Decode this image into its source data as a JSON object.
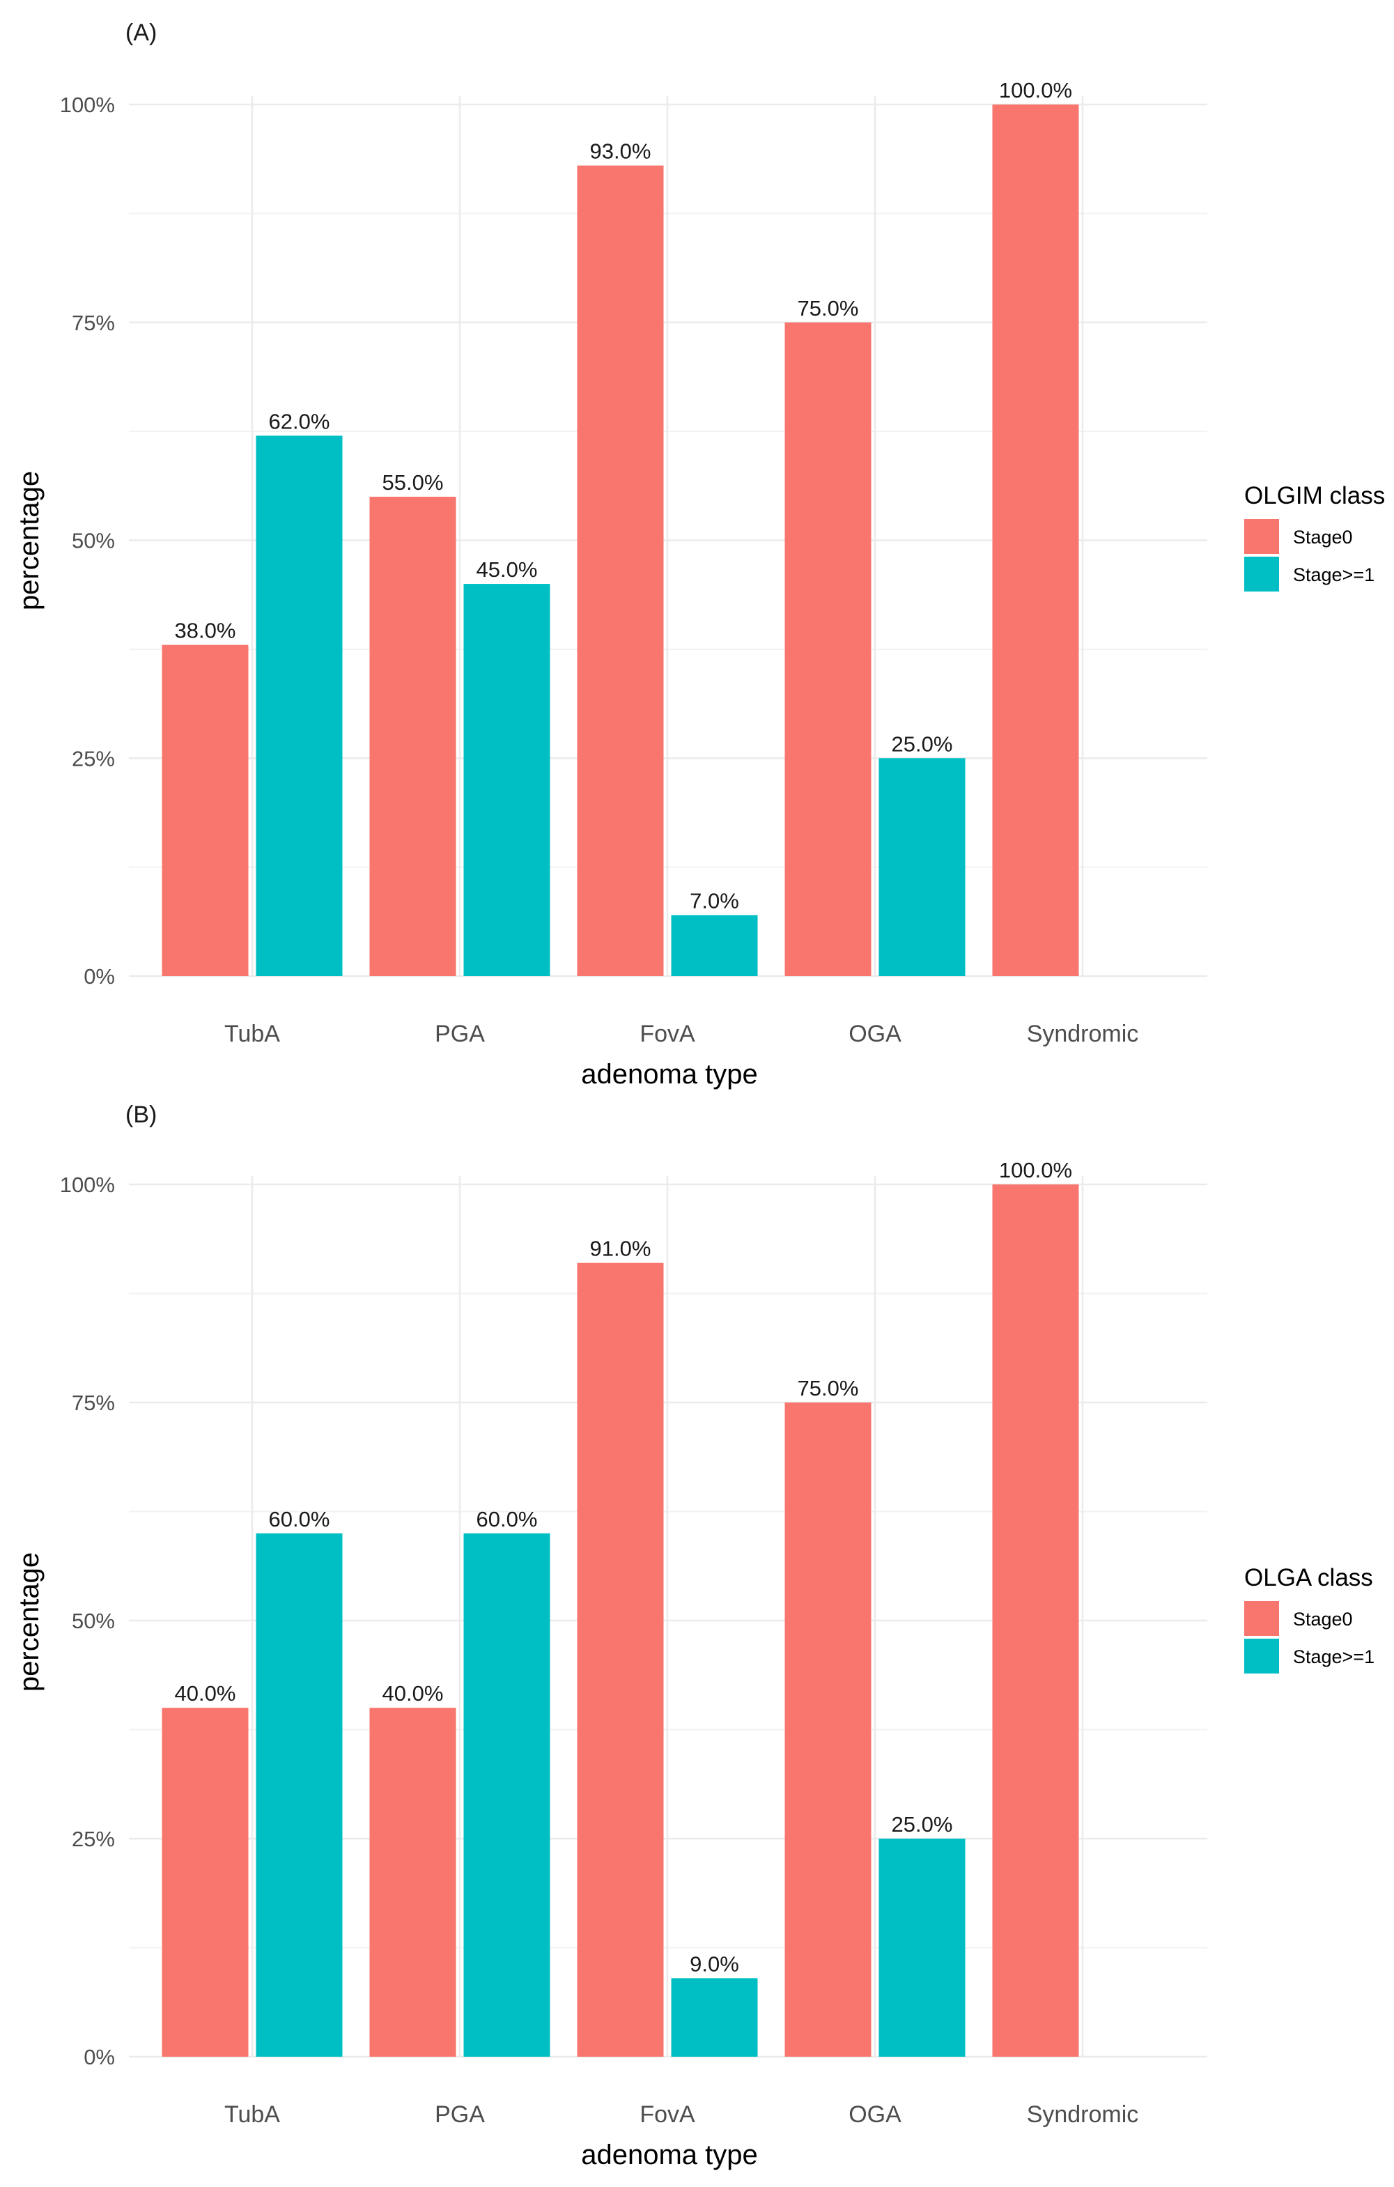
{
  "chart_data": [
    {
      "type": "bar",
      "panel_label": "(A)",
      "categories": [
        "TubA",
        "PGA",
        "FovA",
        "OGA",
        "Syndromic"
      ],
      "series": [
        {
          "name": "Stage0",
          "color": "#F8766D",
          "values": [
            38.0,
            55.0,
            93.0,
            75.0,
            100.0
          ]
        },
        {
          "name": "Stage>=1",
          "color": "#00BFC4",
          "values": [
            62.0,
            45.0,
            7.0,
            25.0,
            null
          ]
        }
      ],
      "value_labels": [
        [
          "38.0%",
          "55.0%",
          "93.0%",
          "75.0%",
          "100.0%"
        ],
        [
          "62.0%",
          "45.0%",
          "7.0%",
          "25.0%",
          null
        ]
      ],
      "xlabel": "adenoma type",
      "ylabel": "percentage",
      "ylim": [
        0,
        100
      ],
      "yticks": [
        0,
        25,
        50,
        75,
        100
      ],
      "ytick_labels": [
        "0%",
        "25%",
        "50%",
        "75%",
        "100%"
      ],
      "grid": true,
      "legend_title": "OLGIM class",
      "legend_position": "right"
    },
    {
      "type": "bar",
      "panel_label": "(B)",
      "categories": [
        "TubA",
        "PGA",
        "FovA",
        "OGA",
        "Syndromic"
      ],
      "series": [
        {
          "name": "Stage0",
          "color": "#F8766D",
          "values": [
            40.0,
            40.0,
            91.0,
            75.0,
            100.0
          ]
        },
        {
          "name": "Stage>=1",
          "color": "#00BFC4",
          "values": [
            60.0,
            60.0,
            9.0,
            25.0,
            null
          ]
        }
      ],
      "value_labels": [
        [
          "40.0%",
          "40.0%",
          "91.0%",
          "75.0%",
          "100.0%"
        ],
        [
          "60.0%",
          "60.0%",
          "9.0%",
          "25.0%",
          null
        ]
      ],
      "xlabel": "adenoma type",
      "ylabel": "percentage",
      "ylim": [
        0,
        100
      ],
      "yticks": [
        0,
        25,
        50,
        75,
        100
      ],
      "ytick_labels": [
        "0%",
        "25%",
        "50%",
        "75%",
        "100%"
      ],
      "grid": true,
      "legend_title": "OLGA class",
      "legend_position": "right"
    }
  ]
}
